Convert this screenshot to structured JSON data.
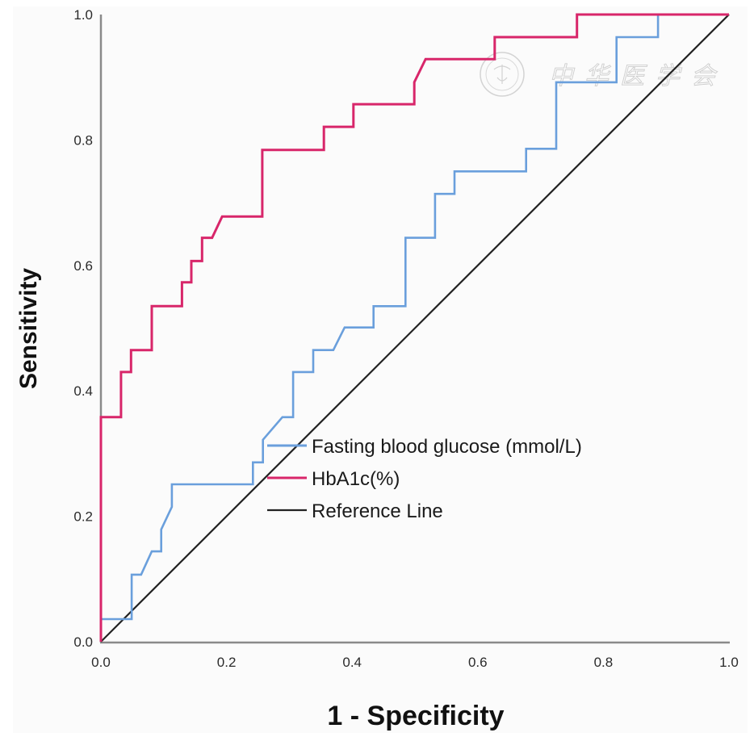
{
  "chart_data": {
    "type": "line",
    "title": "",
    "xlabel": "1 - Specificity",
    "ylabel": "Sensitivity",
    "xlim": [
      0,
      1
    ],
    "ylim": [
      0,
      1
    ],
    "xticks": [
      "0.0",
      "0.2",
      "0.4",
      "0.6",
      "0.8",
      "1.0"
    ],
    "yticks": [
      "0.0",
      "0.2",
      "0.4",
      "0.6",
      "0.8",
      "1.0"
    ],
    "grid": false,
    "legend_position": "center",
    "series": [
      {
        "name": "Fasting blood glucose (mmol/L)",
        "color": "#6a9fdc",
        "points": [
          [
            0,
            0
          ],
          [
            0,
            0.036
          ],
          [
            0.049,
            0.036
          ],
          [
            0.049,
            0.107
          ],
          [
            0.064,
            0.107
          ],
          [
            0.081,
            0.144
          ],
          [
            0.096,
            0.144
          ],
          [
            0.096,
            0.179
          ],
          [
            0.113,
            0.215
          ],
          [
            0.113,
            0.251
          ],
          [
            0.242,
            0.251
          ],
          [
            0.242,
            0.286
          ],
          [
            0.258,
            0.286
          ],
          [
            0.258,
            0.322
          ],
          [
            0.289,
            0.358
          ],
          [
            0.306,
            0.358
          ],
          [
            0.306,
            0.43
          ],
          [
            0.338,
            0.43
          ],
          [
            0.338,
            0.465
          ],
          [
            0.37,
            0.465
          ],
          [
            0.388,
            0.501
          ],
          [
            0.434,
            0.501
          ],
          [
            0.434,
            0.535
          ],
          [
            0.485,
            0.535
          ],
          [
            0.485,
            0.644
          ],
          [
            0.532,
            0.644
          ],
          [
            0.532,
            0.714
          ],
          [
            0.563,
            0.714
          ],
          [
            0.563,
            0.75
          ],
          [
            0.677,
            0.75
          ],
          [
            0.677,
            0.786
          ],
          [
            0.725,
            0.786
          ],
          [
            0.725,
            0.892
          ],
          [
            0.821,
            0.892
          ],
          [
            0.821,
            0.964
          ],
          [
            0.887,
            0.964
          ],
          [
            0.887,
            1.0
          ],
          [
            1.0,
            1.0
          ]
        ]
      },
      {
        "name": "HbA1c(%)",
        "color": "#d8266a",
        "points": [
          [
            0,
            0
          ],
          [
            0,
            0.358
          ],
          [
            0.032,
            0.358
          ],
          [
            0.032,
            0.43
          ],
          [
            0.048,
            0.43
          ],
          [
            0.048,
            0.465
          ],
          [
            0.081,
            0.465
          ],
          [
            0.081,
            0.535
          ],
          [
            0.129,
            0.535
          ],
          [
            0.129,
            0.573
          ],
          [
            0.144,
            0.573
          ],
          [
            0.144,
            0.607
          ],
          [
            0.161,
            0.607
          ],
          [
            0.161,
            0.644
          ],
          [
            0.177,
            0.644
          ],
          [
            0.193,
            0.678
          ],
          [
            0.257,
            0.678
          ],
          [
            0.257,
            0.784
          ],
          [
            0.355,
            0.784
          ],
          [
            0.355,
            0.821
          ],
          [
            0.402,
            0.821
          ],
          [
            0.402,
            0.857
          ],
          [
            0.499,
            0.857
          ],
          [
            0.499,
            0.892
          ],
          [
            0.517,
            0.929
          ],
          [
            0.627,
            0.929
          ],
          [
            0.627,
            0.964
          ],
          [
            0.758,
            0.964
          ],
          [
            0.758,
            1.0
          ],
          [
            1.0,
            1.0
          ]
        ]
      },
      {
        "name": "Reference Line",
        "color": "#222222",
        "points": [
          [
            0,
            0
          ],
          [
            1,
            1
          ]
        ]
      }
    ],
    "watermark": "中华医学会"
  }
}
